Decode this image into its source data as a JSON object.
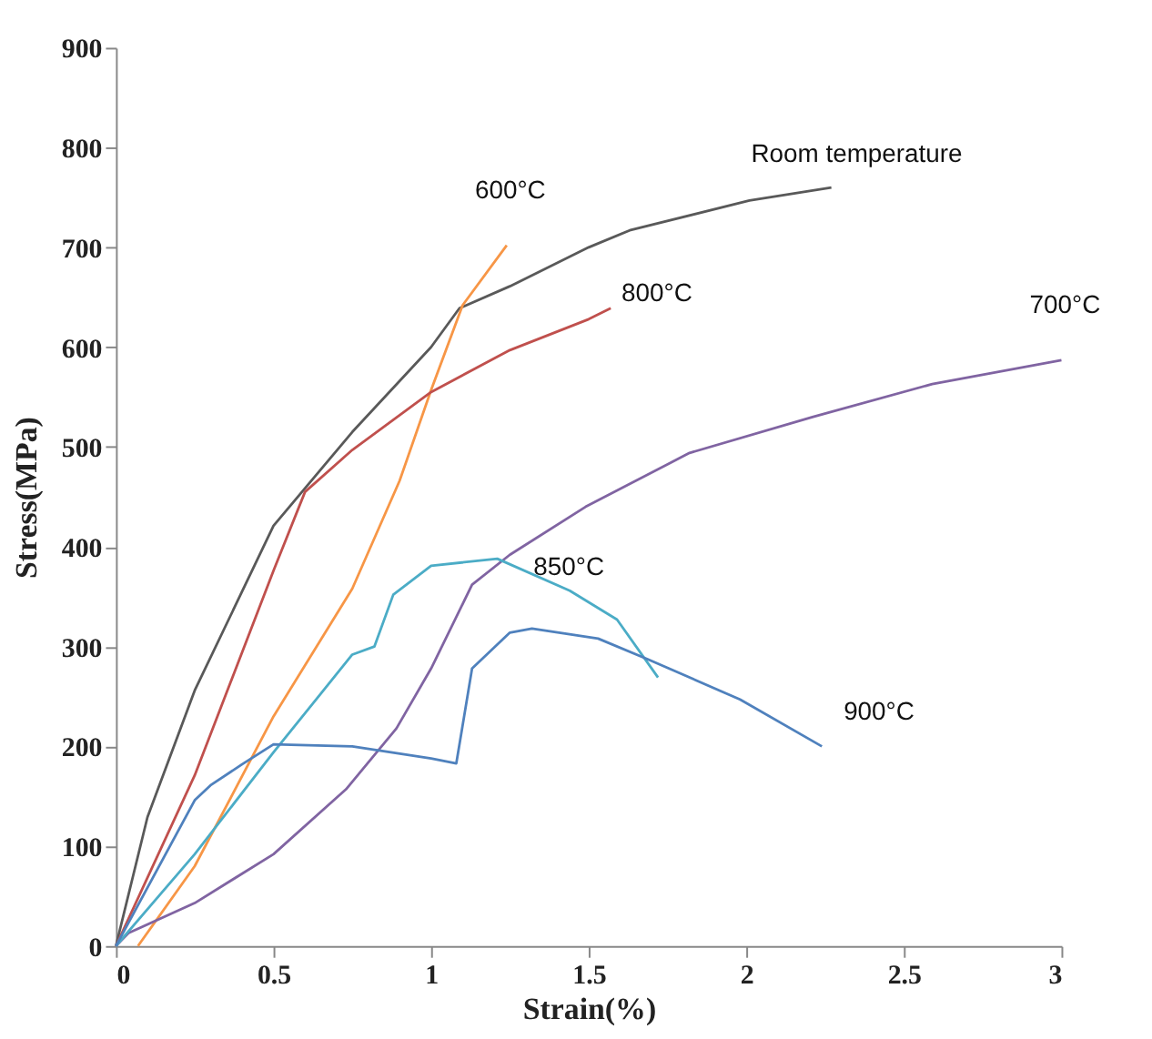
{
  "chart_data": {
    "type": "line",
    "xlabel": "Strain(%)",
    "ylabel": "Stress(MPa)",
    "xlim": [
      0,
      3
    ],
    "xticks": [
      0,
      0.5,
      1,
      1.5,
      2,
      2.5,
      3
    ],
    "ylim": [
      0,
      900
    ],
    "yticks": [
      0,
      100,
      200,
      300,
      400,
      500,
      600,
      700,
      800,
      900
    ],
    "grid": false,
    "marker": "none",
    "line_style": "solid",
    "series": [
      {
        "name": "Room temperature",
        "color": "#595959",
        "x": [
          0,
          0.1,
          0.25,
          0.5,
          0.75,
          1.0,
          1.09,
          1.25,
          1.5,
          1.63,
          2.01,
          2.27
        ],
        "values": [
          0,
          129,
          256,
          421,
          515,
          600,
          639,
          661,
          700,
          717,
          747,
          760
        ]
      },
      {
        "name": "600°C",
        "color": "#f79646",
        "x": [
          0.07,
          0.25,
          0.5,
          0.75,
          0.9,
          1.0,
          1.1,
          1.24
        ],
        "values": [
          0,
          80,
          230,
          358,
          466,
          557,
          642,
          702
        ]
      },
      {
        "name": "800°C",
        "color": "#c0504d",
        "x": [
          0,
          0.25,
          0.5,
          0.6,
          0.75,
          1.0,
          1.25,
          1.5,
          1.57
        ],
        "values": [
          0,
          171,
          376,
          455,
          497,
          555,
          597,
          628,
          639
        ]
      },
      {
        "name": "700°C",
        "color": "#8064a2",
        "x": [
          0,
          0.04,
          0.25,
          0.5,
          0.73,
          0.89,
          1.0,
          1.13,
          1.25,
          1.49,
          1.82,
          2.21,
          2.59,
          3.0
        ],
        "values": [
          0,
          13,
          43,
          92,
          157,
          218,
          278,
          362,
          392,
          440,
          494,
          530,
          563,
          587
        ]
      },
      {
        "name": "850°C",
        "color": "#4bacc6",
        "x": [
          0,
          0.25,
          0.5,
          0.75,
          0.82,
          0.88,
          1.0,
          1.21,
          1.44,
          1.59,
          1.72
        ],
        "values": [
          0,
          92,
          194,
          292,
          300,
          352,
          381,
          388,
          356,
          327,
          269
        ]
      },
      {
        "name": "900°C",
        "color": "#4f81bd",
        "x": [
          0,
          0.25,
          0.3,
          0.4,
          0.5,
          0.75,
          1.0,
          1.08,
          1.13,
          1.25,
          1.32,
          1.53,
          1.69,
          1.98,
          2.24
        ],
        "values": [
          0,
          146,
          161,
          182,
          202,
          200,
          188,
          183,
          278,
          314,
          318,
          308,
          287,
          247,
          200
        ]
      }
    ]
  }
}
